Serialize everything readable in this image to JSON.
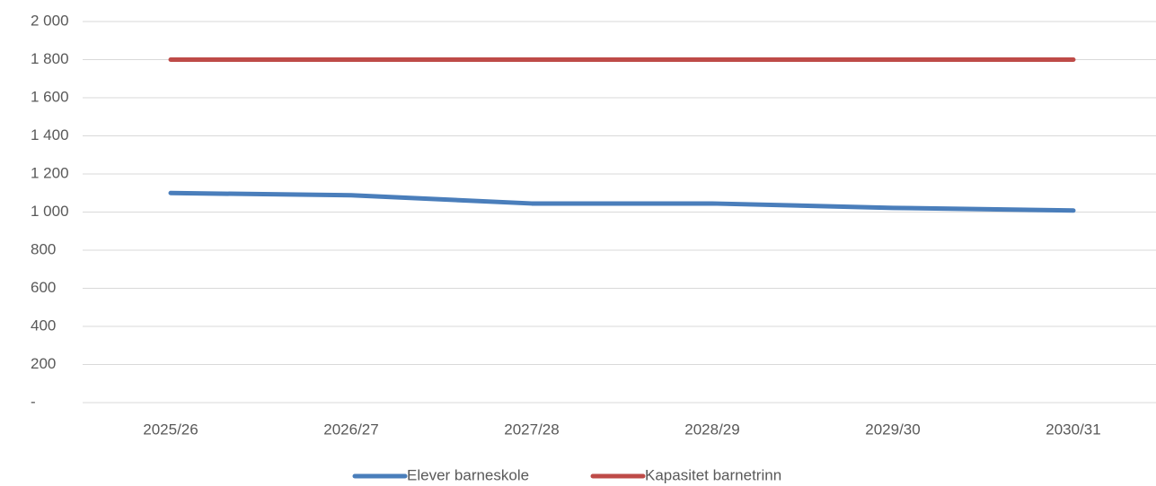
{
  "chart_data": {
    "type": "line",
    "categories": [
      "2025/26",
      "2026/27",
      "2027/28",
      "2028/29",
      "2029/30",
      "2030/31"
    ],
    "series": [
      {
        "name": "Elever barneskole",
        "color": "#4a7ebb",
        "values": [
          1100,
          1088,
          1045,
          1045,
          1022,
          1008
        ]
      },
      {
        "name": "Kapasitet barnetrinn",
        "color": "#be4b48",
        "values": [
          1800,
          1800,
          1800,
          1800,
          1800,
          1800
        ]
      }
    ],
    "ylim": [
      0,
      2000
    ],
    "yticks": [
      {
        "value": 0,
        "label": "-"
      },
      200,
      400,
      600,
      800,
      {
        "value": 1000,
        "label": "1 000"
      },
      {
        "value": 1200,
        "label": "1 200"
      },
      {
        "value": 1400,
        "label": "1 400"
      },
      {
        "value": 1600,
        "label": "1 600"
      },
      {
        "value": 1800,
        "label": "1 800"
      },
      {
        "value": 2000,
        "label": "2 000"
      }
    ],
    "grid": true,
    "legend": "bottom"
  }
}
